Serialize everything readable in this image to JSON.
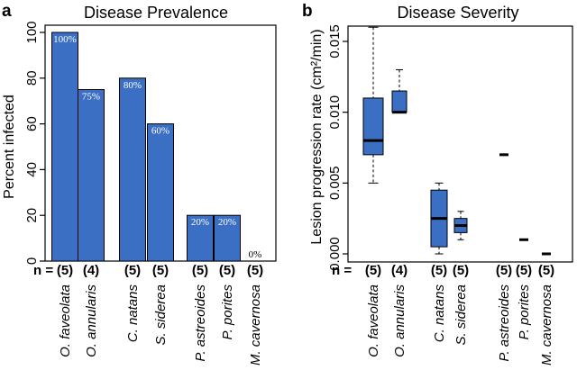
{
  "chart_data": [
    {
      "panel": "a",
      "type": "bar",
      "title": "Disease Prevalence",
      "xlabel": "",
      "ylabel": "Percent infected",
      "ylim": [
        0,
        100
      ],
      "yticks": [
        "0",
        "20",
        "40",
        "60",
        "80",
        "100"
      ],
      "categories": [
        "O. faveolata",
        "O. annularis",
        "C. natans",
        "S. siderea",
        "P. astreoides",
        "P. porites",
        "M. cavernosa"
      ],
      "values": [
        100,
        75,
        80,
        60,
        20,
        20,
        0
      ],
      "value_labels": [
        "100%",
        "75%",
        "80%",
        "60%",
        "20%",
        "20%",
        "0%"
      ],
      "n_prefix": "n =",
      "n_labels": [
        "(5)",
        "(4)",
        "(5)",
        "(5)",
        "(5)",
        "(5)",
        "(5)"
      ],
      "bar_color": "#3a6fc4"
    },
    {
      "panel": "b",
      "type": "box",
      "title": "Disease Severity",
      "xlabel": "",
      "ylabel": "Lesion progression rate (cm²/min)",
      "ylim": [
        0,
        0.015
      ],
      "yticks": [
        "0.000",
        "0.005",
        "0.010",
        "0.015"
      ],
      "categories": [
        "O. faveolata",
        "O. annularis",
        "C. natans",
        "S. siderea",
        "P. astreoides",
        "P. porites",
        "M. cavernosa"
      ],
      "boxes": [
        {
          "min": 0.005,
          "q1": 0.007,
          "median": 0.008,
          "q3": 0.011,
          "max": 0.016
        },
        {
          "min": 0.01,
          "q1": 0.01,
          "median": 0.01,
          "q3": 0.0115,
          "max": 0.013
        },
        {
          "min": 0.0,
          "q1": 0.0005,
          "median": 0.0025,
          "q3": 0.0045,
          "max": 0.005
        },
        {
          "min": 0.001,
          "q1": 0.0015,
          "median": 0.002,
          "q3": 0.0025,
          "max": 0.003
        },
        {
          "min": 0.007,
          "q1": 0.007,
          "median": 0.007,
          "q3": 0.007,
          "max": 0.007
        },
        {
          "min": 0.001,
          "q1": 0.001,
          "median": 0.001,
          "q3": 0.001,
          "max": 0.001
        },
        {
          "min": 0.0,
          "q1": 0.0,
          "median": 0.0,
          "q3": 0.0,
          "max": 0.0
        }
      ],
      "n_prefix": "n =",
      "n_labels": [
        "(5)",
        "(4)",
        "(5)",
        "(5)",
        "(5)",
        "(5)",
        "(5)"
      ],
      "box_color": "#3a6fc4"
    }
  ]
}
